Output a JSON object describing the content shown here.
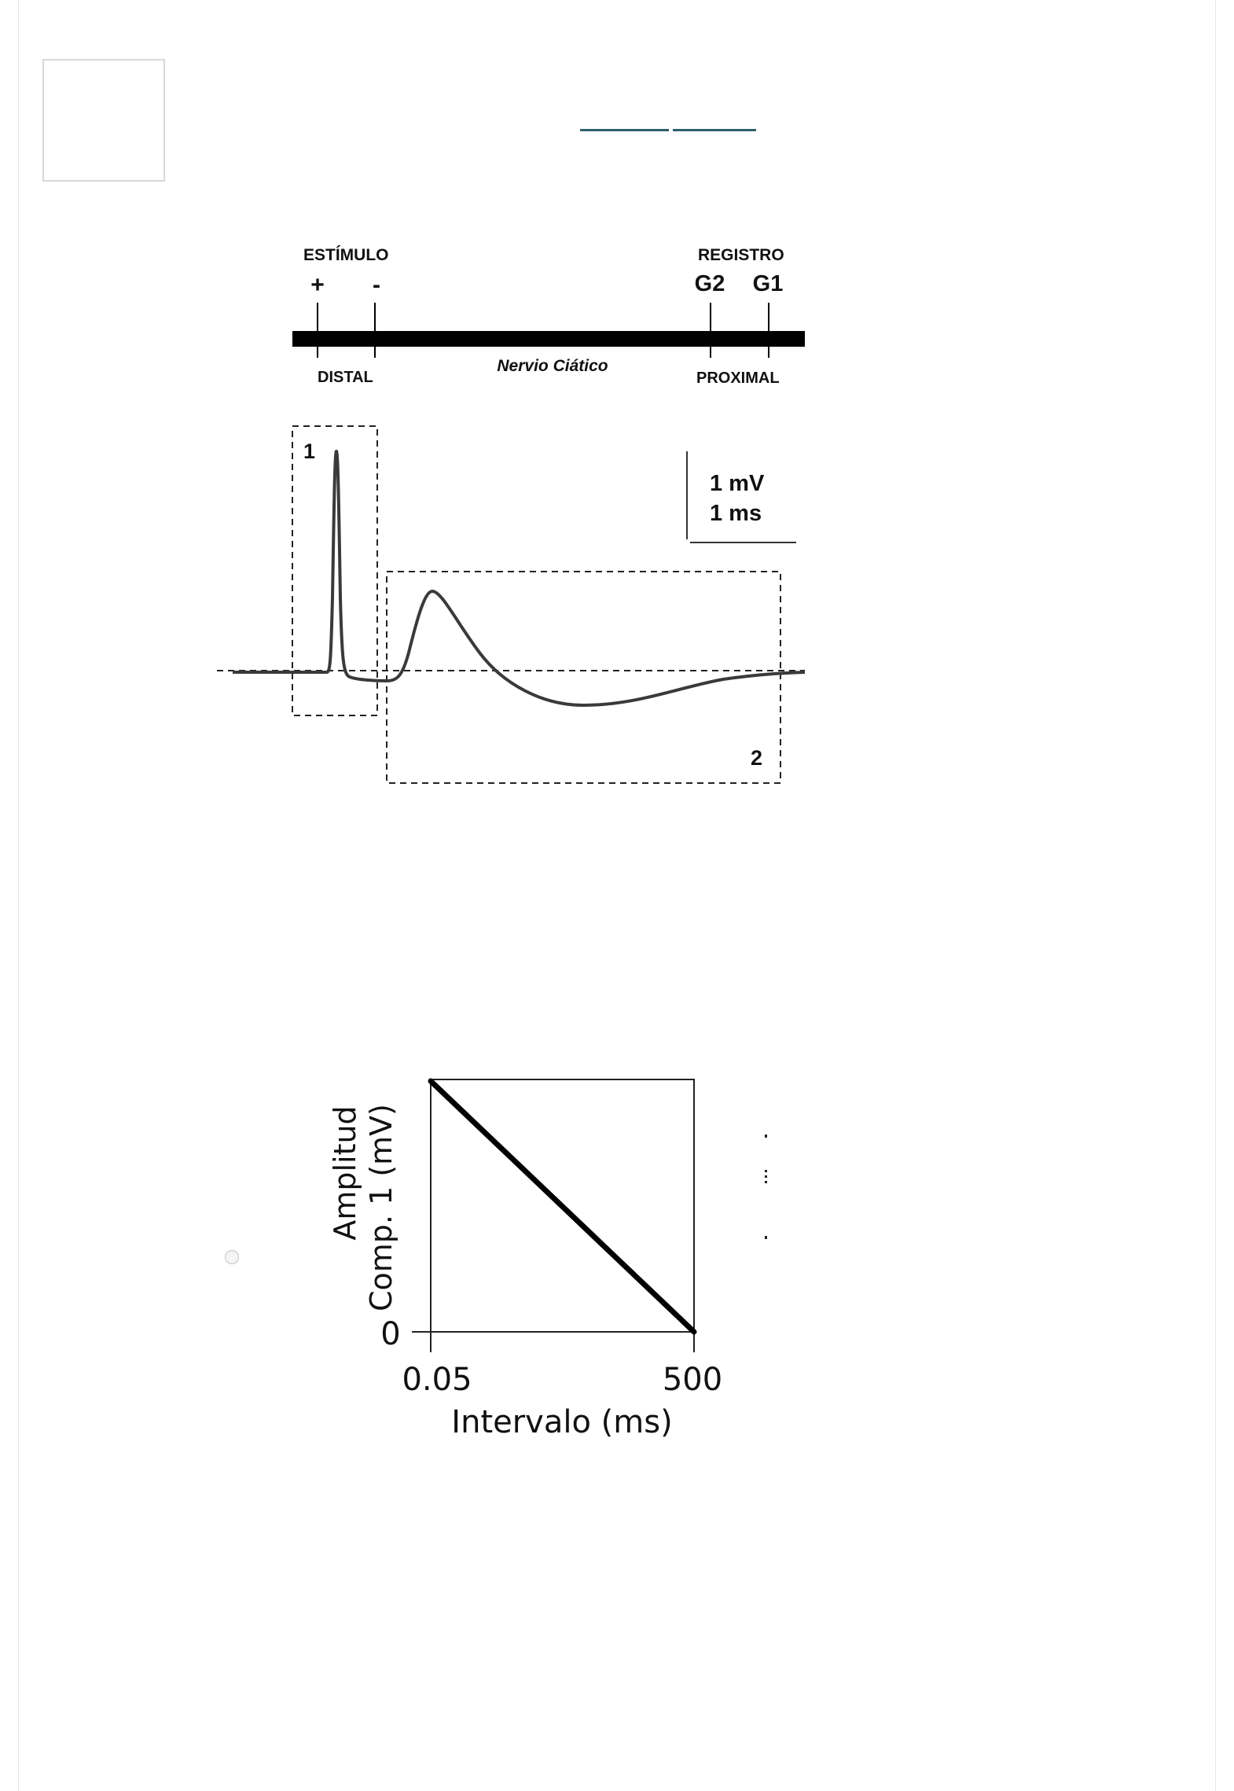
{
  "nerve_diagram": {
    "stimulus_label": "ESTÍMULO",
    "record_label": "REGISTRO",
    "plus": "+",
    "minus": "-",
    "g2": "G2",
    "g1": "G1",
    "distal": "DISTAL",
    "nerve": "Nervio Ciático",
    "proximal": "PROXIMAL"
  },
  "trace": {
    "box1_label": "1",
    "box2_label": "2",
    "scale_mv": "1 mV",
    "scale_ms": "1 ms"
  },
  "answer_option": {
    "selected": false
  },
  "chart_data": {
    "type": "line",
    "title": "",
    "xlabel": "Intervalo (ms)",
    "ylabel_line1": "Amplitud",
    "ylabel_line2": "Comp. 1 (mV)",
    "x_ticks": [
      "0.05",
      "500"
    ],
    "y_ticks": [
      "0"
    ],
    "series": [
      {
        "name": "Amplitud Comp. 1",
        "x": [
          0.05,
          500
        ],
        "y": [
          1,
          0
        ]
      }
    ],
    "xlim": [
      0.05,
      500
    ],
    "ylim": [
      0,
      1
    ],
    "grid": false
  },
  "colors": {
    "link_underline": "#2f5f6e",
    "ink": "#111111",
    "trace": "#3a3a3a"
  }
}
